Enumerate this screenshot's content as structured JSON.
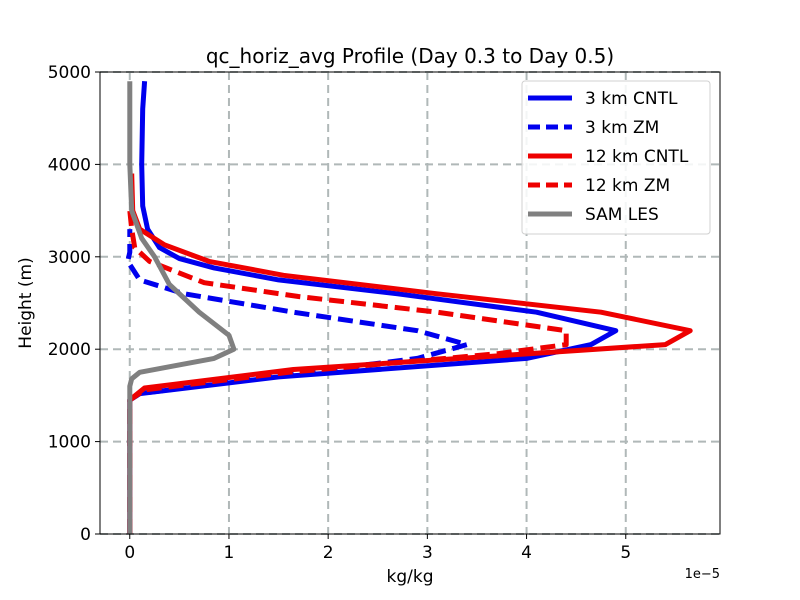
{
  "chart_data": {
    "type": "line",
    "title": "qc_horiz_avg Profile (Day 0.3 to Day 0.5)",
    "xlabel": "kg/kg",
    "ylabel": "Height (m)",
    "x_offset_label": "1e−5",
    "x_scale": 1e-05,
    "xlim": [
      -3e-06,
      5.95e-05
    ],
    "ylim": [
      0,
      5000
    ],
    "x_ticks": [
      0,
      1e-05,
      2e-05,
      3e-05,
      4e-05,
      5e-05
    ],
    "x_tick_labels": [
      "0",
      "1",
      "2",
      "3",
      "4",
      "5"
    ],
    "y_ticks": [
      0,
      1000,
      2000,
      3000,
      4000,
      5000
    ],
    "y_tick_labels": [
      "0",
      "1000",
      "2000",
      "3000",
      "4000",
      "5000"
    ],
    "grid": true,
    "legend_position": "top-right",
    "series": [
      {
        "name": "3 km CNTL",
        "color": "#0000ee",
        "dash": "solid",
        "points": [
          [
            0,
            0
          ],
          [
            0,
            1450
          ],
          [
            1e-06,
            1520
          ],
          [
            1.5e-05,
            1700
          ],
          [
            4e-05,
            1900
          ],
          [
            4.65e-05,
            2050
          ],
          [
            4.9e-05,
            2200
          ],
          [
            4.1e-05,
            2400
          ],
          [
            2.7e-05,
            2600
          ],
          [
            1.5e-05,
            2750
          ],
          [
            8.5e-06,
            2880
          ],
          [
            5e-06,
            2980
          ],
          [
            3e-06,
            3100
          ],
          [
            1.8e-06,
            3300
          ],
          [
            1.3e-06,
            3550
          ],
          [
            1.2e-06,
            4000
          ],
          [
            1.3e-06,
            4600
          ],
          [
            1.5e-06,
            4900
          ]
        ]
      },
      {
        "name": "3 km ZM",
        "color": "#0000ee",
        "dash": "dashed",
        "points": [
          [
            0,
            0
          ],
          [
            0,
            1450
          ],
          [
            1e-06,
            1520
          ],
          [
            1.4e-05,
            1700
          ],
          [
            2.9e-05,
            1900
          ],
          [
            3.4e-05,
            2050
          ],
          [
            2.9e-05,
            2200
          ],
          [
            1.65e-05,
            2400
          ],
          [
            5.5e-06,
            2600
          ],
          [
            1e-06,
            2750
          ],
          [
            -2e-07,
            2950
          ],
          [
            0,
            3050
          ],
          [
            0,
            3300
          ]
        ]
      },
      {
        "name": "12 km CNTL",
        "color": "#ee0000",
        "dash": "solid",
        "points": [
          [
            0,
            0
          ],
          [
            0,
            1450
          ],
          [
            1.5e-06,
            1580
          ],
          [
            1.65e-05,
            1780
          ],
          [
            5.4e-05,
            2050
          ],
          [
            5.65e-05,
            2200
          ],
          [
            4.75e-05,
            2400
          ],
          [
            3.1e-05,
            2600
          ],
          [
            1.55e-05,
            2800
          ],
          [
            8e-06,
            2950
          ],
          [
            3.5e-06,
            3130
          ],
          [
            1e-06,
            3300
          ],
          [
            3e-07,
            3500
          ],
          [
            2e-07,
            3900
          ]
        ]
      },
      {
        "name": "12 km ZM",
        "color": "#ee0000",
        "dash": "dashed",
        "points": [
          [
            0,
            0
          ],
          [
            0,
            1450
          ],
          [
            1.5e-06,
            1560
          ],
          [
            1.6e-05,
            1750
          ],
          [
            3.7e-05,
            1950
          ],
          [
            4.4e-05,
            2050
          ],
          [
            4.4e-05,
            2200
          ],
          [
            3.1e-05,
            2400
          ],
          [
            1.7e-05,
            2570
          ],
          [
            7.5e-06,
            2720
          ],
          [
            2e-06,
            2950
          ],
          [
            5e-07,
            3100
          ],
          [
            2e-07,
            3300
          ],
          [
            0,
            3500
          ]
        ]
      },
      {
        "name": "SAM LES",
        "color": "#808080",
        "dash": "solid",
        "points": [
          [
            0,
            0
          ],
          [
            0,
            1600
          ],
          [
            2e-07,
            1680
          ],
          [
            1e-06,
            1750
          ],
          [
            4.5e-06,
            1820
          ],
          [
            8.5e-06,
            1900
          ],
          [
            1.05e-05,
            2000
          ],
          [
            1e-05,
            2150
          ],
          [
            7e-06,
            2400
          ],
          [
            4e-06,
            2700
          ],
          [
            2.5e-06,
            3000
          ],
          [
            1.2e-06,
            3200
          ],
          [
            2e-07,
            3500
          ],
          [
            0,
            4000
          ],
          [
            0,
            4500
          ],
          [
            0,
            4900
          ]
        ]
      }
    ]
  }
}
